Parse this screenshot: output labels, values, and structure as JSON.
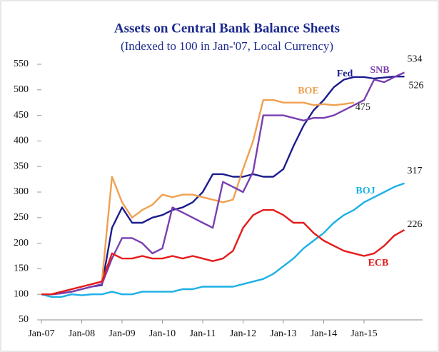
{
  "chart_data": {
    "type": "line",
    "title": "Assets on Central Bank Balance Sheets",
    "subtitle": "(Indexed to 100 in Jan-'07, Local Currency)",
    "x": [
      "Jan-07",
      "Apr-07",
      "Jul-07",
      "Oct-07",
      "Jan-08",
      "Apr-08",
      "Jul-08",
      "Oct-08",
      "Jan-09",
      "Apr-09",
      "Jul-09",
      "Oct-09",
      "Jan-10",
      "Apr-10",
      "Jul-10",
      "Oct-10",
      "Jan-11",
      "Apr-11",
      "Jul-11",
      "Oct-11",
      "Jan-12",
      "Apr-12",
      "Jul-12",
      "Oct-12",
      "Jan-13",
      "Apr-13",
      "Jul-13",
      "Oct-13",
      "Jan-14",
      "Apr-14",
      "Jul-14",
      "Oct-14",
      "Jan-15",
      "Apr-15",
      "Jul-15",
      "Oct-15",
      "Jan-16"
    ],
    "xticks": [
      "Jan-07",
      "Jan-08",
      "Jan-09",
      "Jan-10",
      "Jan-11",
      "Jan-12",
      "Jan-13",
      "Jan-14",
      "Jan-15"
    ],
    "ylim": [
      50,
      550
    ],
    "yticks": [
      50,
      100,
      150,
      200,
      250,
      300,
      350,
      400,
      450,
      500,
      550
    ],
    "series": [
      {
        "name": "Fed",
        "color": "#1c1c8e",
        "values": [
          100,
          100,
          102,
          105,
          110,
          115,
          118,
          230,
          270,
          240,
          240,
          250,
          255,
          265,
          270,
          280,
          300,
          335,
          335,
          330,
          330,
          335,
          330,
          330,
          345,
          390,
          430,
          460,
          480,
          505,
          520,
          525,
          525,
          522,
          524,
          526,
          526
        ]
      },
      {
        "name": "BOE",
        "color": "#f0a050",
        "values": [
          100,
          100,
          105,
          110,
          115,
          120,
          125,
          330,
          280,
          250,
          265,
          275,
          295,
          290,
          295,
          295,
          290,
          285,
          280,
          285,
          345,
          400,
          480,
          480,
          475,
          475,
          475,
          470,
          472,
          470,
          472,
          475,
          null,
          null,
          null,
          null,
          null
        ]
      },
      {
        "name": "SNB",
        "color": "#7a3fb0",
        "values": [
          100,
          100,
          102,
          105,
          110,
          115,
          120,
          170,
          210,
          210,
          200,
          180,
          190,
          270,
          260,
          250,
          240,
          230,
          320,
          310,
          300,
          340,
          450,
          450,
          450,
          445,
          440,
          445,
          445,
          450,
          460,
          470,
          480,
          520,
          515,
          525,
          534
        ]
      },
      {
        "name": "BOJ",
        "color": "#1cb0e6",
        "values": [
          100,
          95,
          95,
          100,
          98,
          100,
          100,
          105,
          100,
          100,
          105,
          105,
          105,
          105,
          110,
          110,
          115,
          115,
          115,
          115,
          120,
          125,
          130,
          140,
          155,
          170,
          190,
          205,
          220,
          240,
          255,
          265,
          280,
          290,
          300,
          310,
          317
        ]
      },
      {
        "name": "ECB",
        "color": "#e61a1a",
        "values": [
          100,
          100,
          105,
          110,
          115,
          120,
          125,
          180,
          170,
          170,
          175,
          170,
          170,
          175,
          170,
          175,
          170,
          165,
          170,
          185,
          230,
          255,
          265,
          265,
          255,
          240,
          240,
          220,
          205,
          195,
          185,
          180,
          175,
          180,
          195,
          215,
          226
        ]
      }
    ]
  }
}
